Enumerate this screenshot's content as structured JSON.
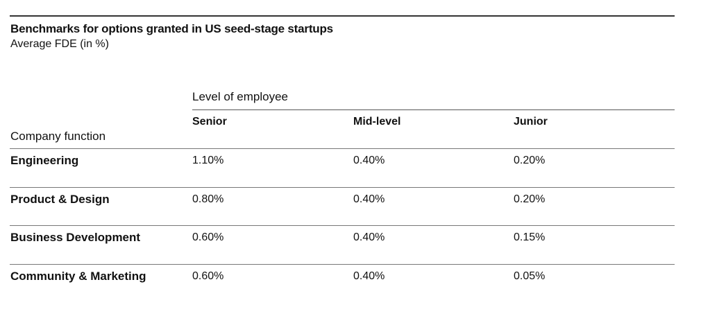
{
  "title": "Benchmarks for options granted in US seed-stage startups",
  "subtitle": "Average FDE (in %)",
  "level_label": "Level of employee",
  "function_label": "Company function",
  "columns": [
    "Senior",
    "Mid-level",
    "Junior"
  ],
  "rows": [
    {
      "function": "Engineering",
      "values": [
        "1.10%",
        "0.40%",
        "0.20%"
      ]
    },
    {
      "function": "Product & Design",
      "values": [
        "0.80%",
        "0.40%",
        "0.20%"
      ]
    },
    {
      "function": "Business Development",
      "values": [
        "0.60%",
        "0.40%",
        "0.15%"
      ]
    },
    {
      "function": "Community & Marketing",
      "values": [
        "0.60%",
        "0.40%",
        "0.05%"
      ]
    }
  ]
}
